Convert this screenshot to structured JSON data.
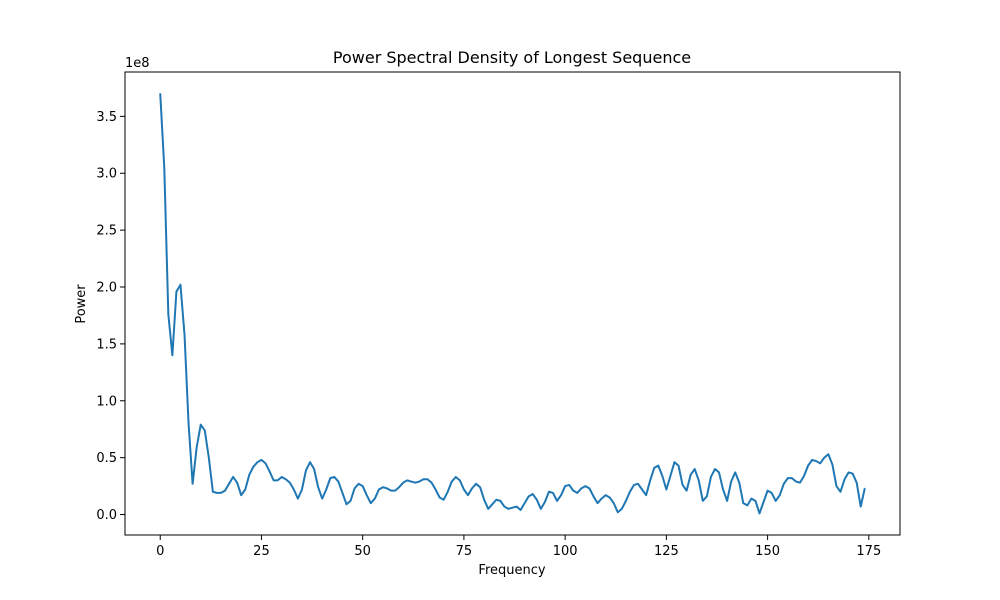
{
  "chart_data": {
    "type": "line",
    "title": "Power Spectral Density of Longest Sequence",
    "xlabel": "Frequency",
    "ylabel": "Power",
    "y_offset_label": "1e8",
    "xlim": [
      -8.7,
      182.7
    ],
    "ylim": [
      -0.18,
      3.89
    ],
    "y_scale_note": "values in units of 1e8",
    "x_ticks": [
      0,
      25,
      50,
      75,
      100,
      125,
      150,
      175
    ],
    "y_ticks": [
      0.0,
      0.5,
      1.0,
      1.5,
      2.0,
      2.5,
      3.0,
      3.5
    ],
    "y_tick_labels": [
      "0.0",
      "0.5",
      "1.0",
      "1.5",
      "2.0",
      "2.5",
      "3.0",
      "3.5"
    ],
    "grid": false,
    "series": [
      {
        "color": "#1f77b4",
        "x": [
          0,
          1,
          2,
          3,
          4,
          5,
          6,
          7,
          8,
          9,
          10,
          11,
          12,
          13,
          14,
          15,
          16,
          17,
          18,
          19,
          20,
          21,
          22,
          23,
          24,
          25,
          26,
          27,
          28,
          29,
          30,
          31,
          32,
          33,
          34,
          35,
          36,
          37,
          38,
          39,
          40,
          41,
          42,
          43,
          44,
          45,
          46,
          47,
          48,
          49,
          50,
          51,
          52,
          53,
          54,
          55,
          56,
          57,
          58,
          59,
          60,
          61,
          62,
          63,
          64,
          65,
          66,
          67,
          68,
          69,
          70,
          71,
          72,
          73,
          74,
          75,
          76,
          77,
          78,
          79,
          80,
          81,
          82,
          83,
          84,
          85,
          86,
          87,
          88,
          89,
          90,
          91,
          92,
          93,
          94,
          95,
          96,
          97,
          98,
          99,
          100,
          101,
          102,
          103,
          104,
          105,
          106,
          107,
          108,
          109,
          110,
          111,
          112,
          113,
          114,
          115,
          116,
          117,
          118,
          119,
          120,
          121,
          122,
          123,
          124,
          125,
          126,
          127,
          128,
          129,
          130,
          131,
          132,
          133,
          134,
          135,
          136,
          137,
          138,
          139,
          140,
          141,
          142,
          143,
          144,
          145,
          146,
          147,
          148,
          149,
          150,
          151,
          152,
          153,
          154,
          155,
          156,
          157,
          158,
          159,
          160,
          161,
          162,
          163,
          164,
          165,
          166,
          167,
          168,
          169,
          170,
          171,
          172,
          173,
          174
        ],
        "y": [
          3.7,
          3.05,
          1.76,
          1.4,
          1.96,
          2.02,
          1.58,
          0.8,
          0.27,
          0.59,
          0.79,
          0.74,
          0.5,
          0.2,
          0.19,
          0.19,
          0.21,
          0.27,
          0.33,
          0.28,
          0.17,
          0.22,
          0.35,
          0.42,
          0.46,
          0.48,
          0.45,
          0.38,
          0.3,
          0.3,
          0.33,
          0.31,
          0.28,
          0.22,
          0.14,
          0.22,
          0.39,
          0.46,
          0.4,
          0.24,
          0.14,
          0.22,
          0.32,
          0.33,
          0.29,
          0.19,
          0.09,
          0.12,
          0.23,
          0.27,
          0.25,
          0.17,
          0.1,
          0.14,
          0.22,
          0.24,
          0.23,
          0.21,
          0.21,
          0.24,
          0.28,
          0.3,
          0.29,
          0.28,
          0.29,
          0.31,
          0.31,
          0.28,
          0.22,
          0.15,
          0.13,
          0.2,
          0.29,
          0.33,
          0.3,
          0.22,
          0.17,
          0.23,
          0.27,
          0.24,
          0.13,
          0.05,
          0.09,
          0.13,
          0.12,
          0.07,
          0.05,
          0.06,
          0.07,
          0.04,
          0.1,
          0.16,
          0.18,
          0.13,
          0.05,
          0.11,
          0.2,
          0.19,
          0.12,
          0.17,
          0.25,
          0.26,
          0.21,
          0.19,
          0.23,
          0.25,
          0.23,
          0.16,
          0.1,
          0.14,
          0.17,
          0.15,
          0.1,
          0.02,
          0.05,
          0.12,
          0.2,
          0.26,
          0.27,
          0.22,
          0.17,
          0.3,
          0.41,
          0.43,
          0.34,
          0.22,
          0.34,
          0.46,
          0.43,
          0.26,
          0.21,
          0.35,
          0.4,
          0.3,
          0.12,
          0.16,
          0.33,
          0.4,
          0.37,
          0.22,
          0.12,
          0.29,
          0.37,
          0.28,
          0.1,
          0.08,
          0.14,
          0.12,
          0.01,
          0.11,
          0.21,
          0.19,
          0.12,
          0.17,
          0.27,
          0.32,
          0.32,
          0.29,
          0.28,
          0.34,
          0.43,
          0.48,
          0.47,
          0.45,
          0.5,
          0.53,
          0.44,
          0.25,
          0.2,
          0.31,
          0.37,
          0.36,
          0.28,
          0.07,
          0.23
        ]
      }
    ]
  }
}
